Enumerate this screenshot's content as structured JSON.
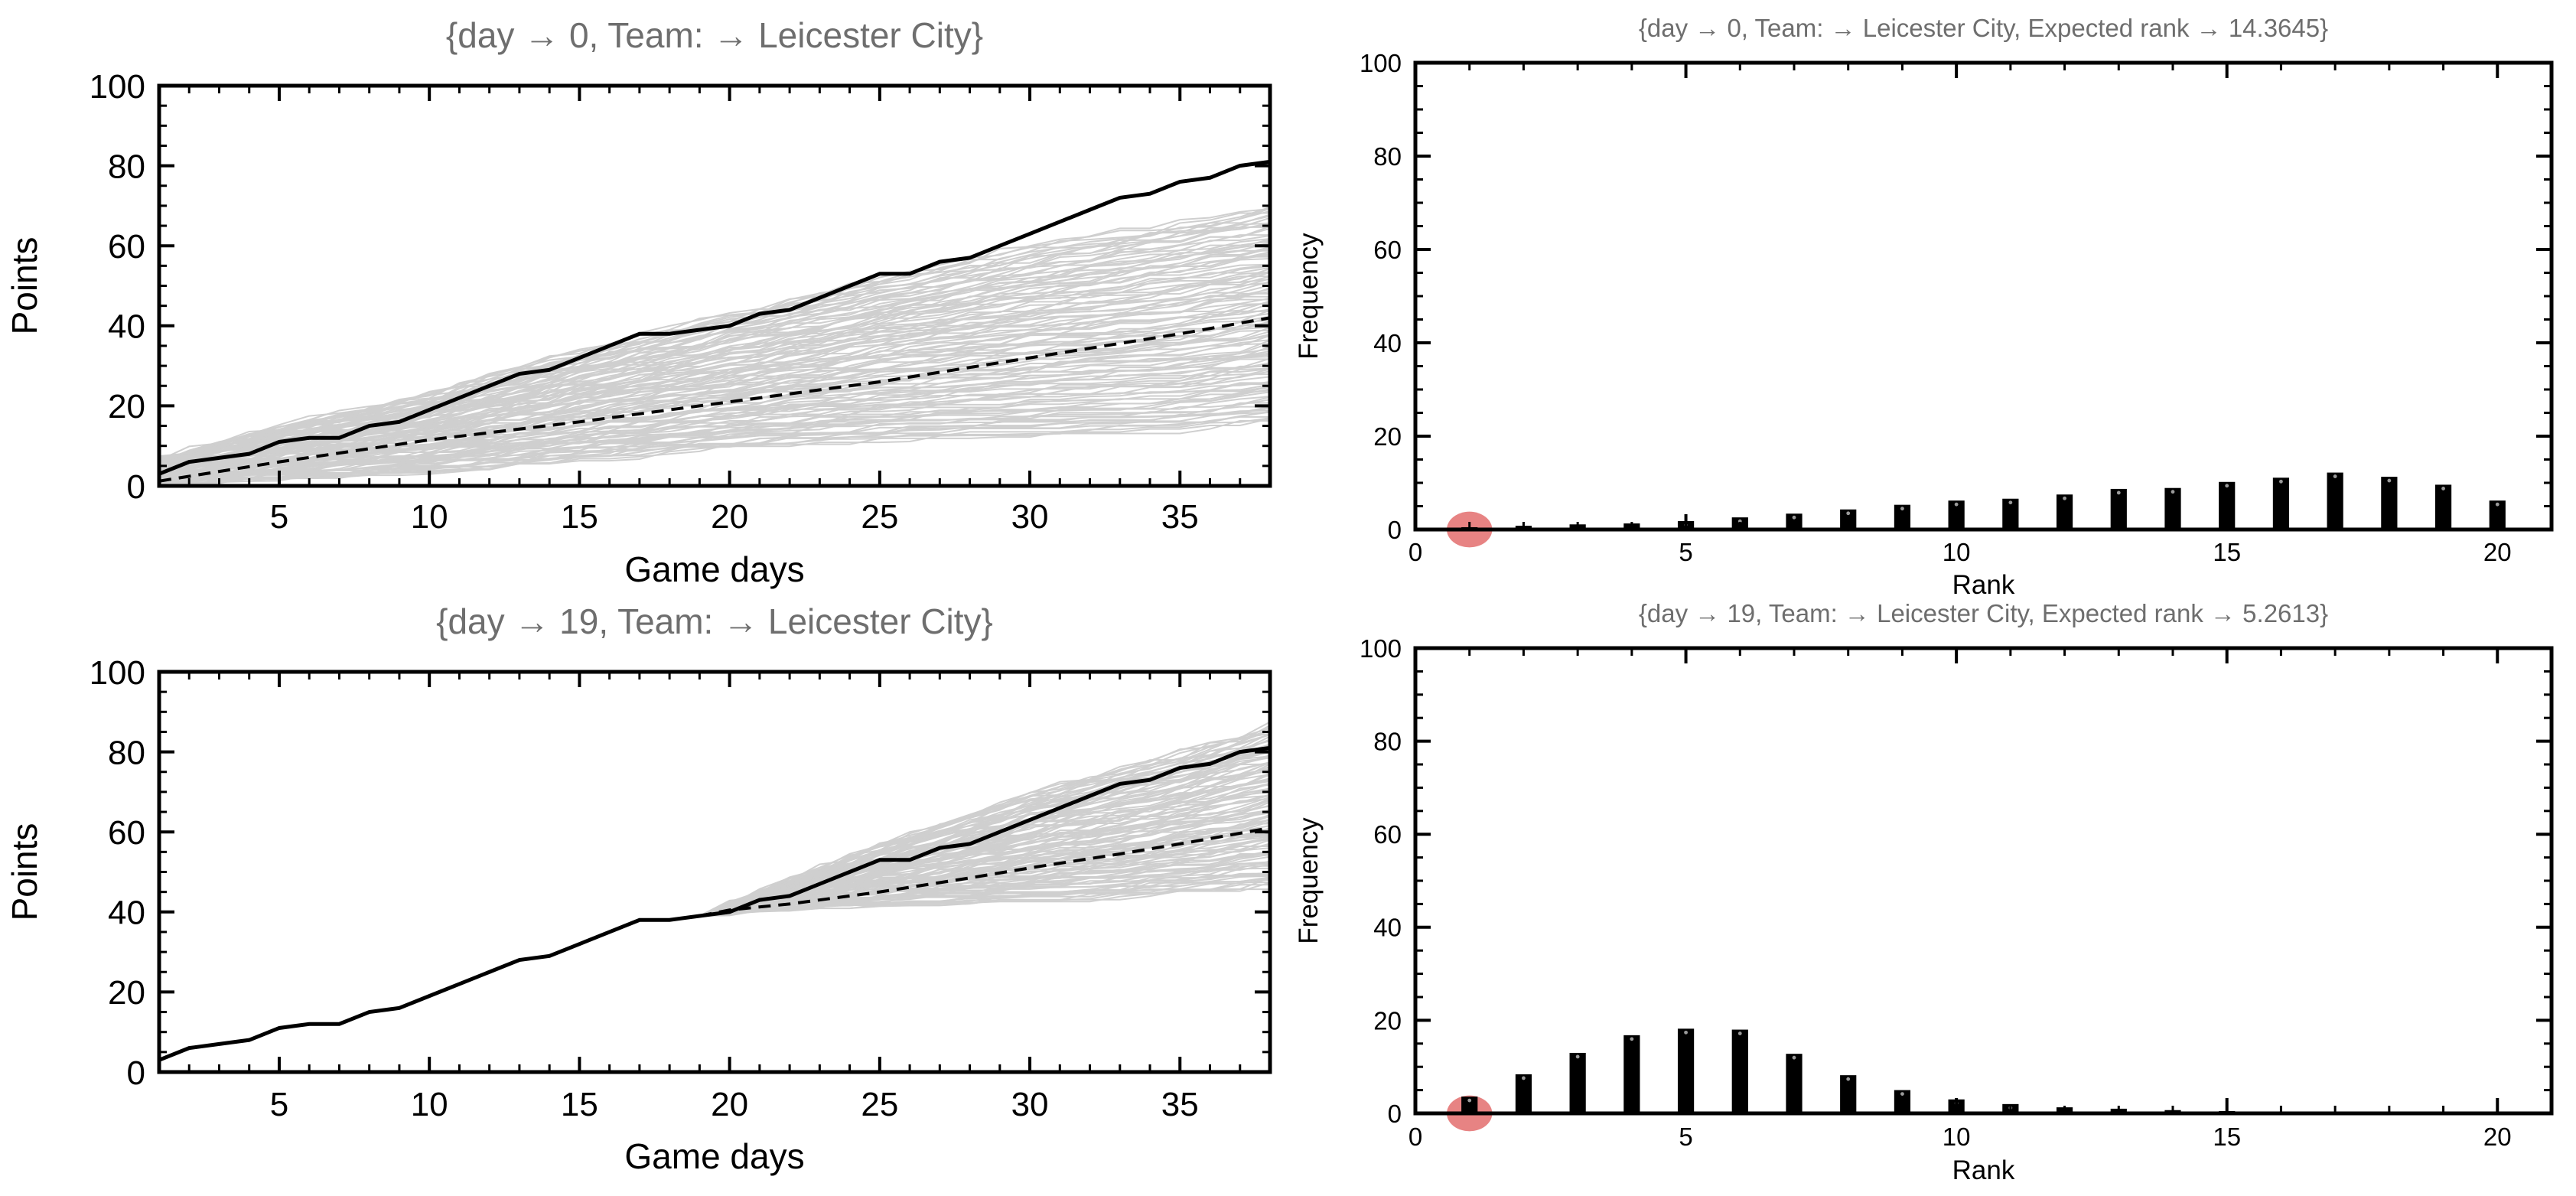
{
  "chart_data": [
    {
      "type": "line",
      "panel": "top-left",
      "title": "{day → 0, Team: → Leicester City}",
      "xlabel": "Game days",
      "ylabel": "Points",
      "xlim": [
        1,
        38
      ],
      "ylim": [
        0,
        100
      ],
      "xticks": [
        5,
        10,
        15,
        20,
        25,
        30,
        35
      ],
      "yticks": [
        0,
        20,
        40,
        60,
        80,
        100
      ],
      "simulation_start_day": 0,
      "actual_points": {
        "x": [
          1,
          2,
          3,
          4,
          5,
          6,
          7,
          8,
          9,
          10,
          11,
          12,
          13,
          14,
          15,
          16,
          17,
          18,
          19,
          20,
          21,
          22,
          23,
          24,
          25,
          26,
          27,
          28,
          29,
          30,
          31,
          32,
          33,
          34,
          35,
          36,
          37,
          38
        ],
        "y": [
          3,
          6,
          7,
          8,
          11,
          12,
          12,
          15,
          16,
          19,
          22,
          25,
          28,
          29,
          32,
          35,
          38,
          38,
          39,
          40,
          43,
          44,
          47,
          50,
          53,
          53,
          56,
          57,
          60,
          63,
          66,
          69,
          72,
          73,
          76,
          77,
          80,
          81
        ]
      },
      "expected_points": {
        "x": [
          1,
          5,
          10,
          15,
          20,
          25,
          30,
          35,
          38
        ],
        "y": [
          1.2,
          6,
          11.5,
          16,
          21,
          26,
          32,
          38,
          42
        ]
      },
      "simulation_band": {
        "day": [
          0,
          5,
          10,
          15,
          20,
          25,
          30,
          35,
          38
        ],
        "lower": [
          0,
          1,
          3,
          6,
          9,
          11,
          12,
          13,
          16
        ],
        "upper": [
          5,
          15,
          23,
          34,
          43,
          52,
          60,
          66,
          70
        ]
      }
    },
    {
      "type": "bar",
      "panel": "top-right",
      "title": "{day → 0, Team: → Leicester City,    Expected rank → 14.3645}",
      "xlabel": "Rank",
      "ylabel": "Frequency",
      "xlim": [
        0,
        21
      ],
      "ylim": [
        0,
        100
      ],
      "xticks": [
        0,
        5,
        10,
        15,
        20
      ],
      "yticks": [
        0,
        20,
        40,
        60,
        80,
        100
      ],
      "categories": [
        1,
        2,
        3,
        4,
        5,
        6,
        7,
        8,
        9,
        10,
        11,
        12,
        13,
        14,
        15,
        16,
        17,
        18,
        19,
        20
      ],
      "values": [
        0.5,
        0.8,
        1.1,
        1.3,
        1.8,
        2.6,
        3.4,
        4.3,
        5.3,
        6.2,
        6.6,
        7.5,
        8.7,
        8.9,
        10.2,
        11.1,
        12.2,
        11.3,
        9.6,
        6.2
      ],
      "highlight_rank": 1
    },
    {
      "type": "line",
      "panel": "bottom-left",
      "title": "{day → 19, Team: → Leicester City}",
      "xlabel": "Game days",
      "ylabel": "Points",
      "xlim": [
        1,
        38
      ],
      "ylim": [
        0,
        100
      ],
      "xticks": [
        5,
        10,
        15,
        20,
        25,
        30,
        35
      ],
      "yticks": [
        0,
        20,
        40,
        60,
        80,
        100
      ],
      "simulation_start_day": 19,
      "actual_points": {
        "x": [
          1,
          2,
          3,
          4,
          5,
          6,
          7,
          8,
          9,
          10,
          11,
          12,
          13,
          14,
          15,
          16,
          17,
          18,
          19,
          20,
          21,
          22,
          23,
          24,
          25,
          26,
          27,
          28,
          29,
          30,
          31,
          32,
          33,
          34,
          35,
          36,
          37,
          38
        ],
        "y": [
          3,
          6,
          7,
          8,
          11,
          12,
          12,
          15,
          16,
          19,
          22,
          25,
          28,
          29,
          32,
          35,
          38,
          38,
          39,
          40,
          43,
          44,
          47,
          50,
          53,
          53,
          56,
          57,
          60,
          63,
          66,
          69,
          72,
          73,
          76,
          77,
          80,
          81
        ]
      },
      "expected_points": {
        "x": [
          19,
          20,
          22,
          25,
          28,
          30,
          33,
          35,
          38
        ],
        "y": [
          39,
          40.5,
          42,
          45,
          48.5,
          51,
          54.5,
          57,
          61
        ]
      },
      "simulation_band": {
        "day": [
          19,
          20,
          25,
          30,
          35,
          38
        ],
        "lower": [
          39,
          40,
          41,
          42,
          44,
          46
        ],
        "upper": [
          39,
          42,
          57,
          70,
          80,
          87
        ]
      }
    },
    {
      "type": "bar",
      "panel": "bottom-right",
      "title": "{day → 19, Team: → Leicester City,    Expected rank → 5.2613}",
      "xlabel": "Rank",
      "ylabel": "Frequency",
      "xlim": [
        0,
        21
      ],
      "ylim": [
        0,
        100
      ],
      "xticks": [
        0,
        5,
        10,
        15,
        20
      ],
      "yticks": [
        0,
        20,
        40,
        60,
        80,
        100
      ],
      "categories": [
        1,
        2,
        3,
        4,
        5,
        6,
        7,
        8,
        9,
        10,
        11,
        12,
        13,
        14,
        15,
        16,
        17,
        18,
        19,
        20
      ],
      "values": [
        3.6,
        8.4,
        13.0,
        16.8,
        18.2,
        18.0,
        12.8,
        8.2,
        5.0,
        3.0,
        2.0,
        1.3,
        1.0,
        0.7,
        0.5,
        0,
        0,
        0,
        0,
        0
      ],
      "highlight_rank": 1
    }
  ]
}
